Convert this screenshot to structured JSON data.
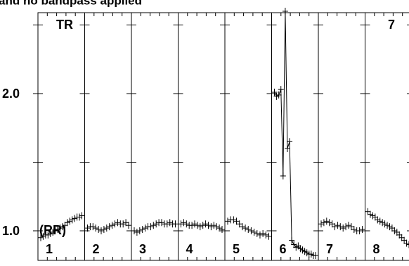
{
  "header": {
    "caption": "and no bandpass applied"
  },
  "chart_data": {
    "type": "scatter",
    "title": "and no bandpass applied",
    "ylabel": "(RR)",
    "corner_label": "TR",
    "corner_label_right": "7",
    "ylim": [
      0.8,
      2.7
    ],
    "yticks": [
      1.0,
      1.5,
      2.0,
      2.5
    ],
    "ytick_labels": [
      "1.0",
      "",
      "2.0",
      ""
    ],
    "grid": false,
    "panels": [
      {
        "label": "1",
        "points": [
          0.95,
          0.96,
          0.97,
          0.97,
          0.98,
          0.99,
          1.0,
          1.01,
          1.02,
          1.03,
          1.04,
          1.06,
          1.07,
          1.08,
          1.09,
          1.1,
          1.1,
          1.11
        ]
      },
      {
        "label": "2",
        "points": [
          1.02,
          1.03,
          1.03,
          1.02,
          1.01,
          1.0,
          1.01,
          1.02,
          1.03,
          1.04,
          1.05,
          1.06,
          1.05,
          1.05,
          1.06,
          1.04
        ]
      },
      {
        "label": "3",
        "points": [
          1.0,
          0.99,
          1.0,
          1.01,
          1.02,
          1.03,
          1.03,
          1.04,
          1.05,
          1.06,
          1.06,
          1.05,
          1.05,
          1.06,
          1.05,
          1.05
        ]
      },
      {
        "label": "4",
        "points": [
          1.05,
          1.06,
          1.05,
          1.04,
          1.04,
          1.05,
          1.04,
          1.03,
          1.04,
          1.05,
          1.04,
          1.03,
          1.04,
          1.03,
          1.02,
          1.01
        ]
      },
      {
        "label": "5",
        "points": [
          1.07,
          1.08,
          1.08,
          1.07,
          1.05,
          1.03,
          1.02,
          1.01,
          1.0,
          0.99,
          0.98,
          0.97,
          0.98,
          0.97,
          0.96
        ]
      },
      {
        "label": "6",
        "points": [
          2.01,
          1.98,
          1.99,
          2.03,
          1.4,
          2.6,
          1.6,
          1.65,
          0.93,
          0.9,
          0.88,
          0.89,
          0.87,
          0.86,
          0.85,
          0.84,
          0.83,
          0.83,
          0.82,
          0.82
        ]
      },
      {
        "label": "7",
        "points": [
          1.05,
          1.06,
          1.07,
          1.06,
          1.05,
          1.03,
          1.04,
          1.03,
          1.02,
          1.03,
          1.04,
          1.03,
          1.01,
          1.0,
          1.0,
          1.01
        ]
      },
      {
        "label": "8",
        "points": [
          1.14,
          1.12,
          1.11,
          1.1,
          1.08,
          1.07,
          1.06,
          1.05,
          1.04,
          1.03,
          1.02,
          1.0,
          0.99,
          0.97,
          0.95,
          0.93,
          0.91,
          0.9
        ]
      }
    ]
  }
}
